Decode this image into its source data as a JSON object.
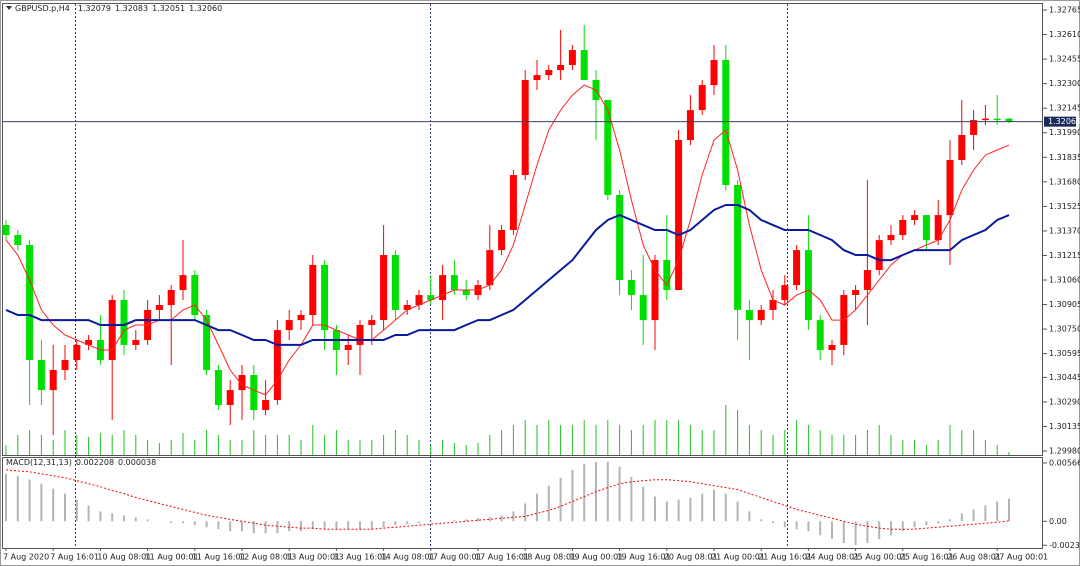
{
  "chart_data": {
    "type": "candlestick",
    "title": "GBPUSD.p,H4",
    "categories": [
      "7 Aug 2020",
      null,
      null,
      null,
      "7 Aug 16:01",
      null,
      null,
      null,
      "10 Aug 08:01",
      null,
      null,
      null,
      "11 Aug 00:01",
      null,
      null,
      null,
      "11 Aug 16:01",
      null,
      null,
      null,
      "12 Aug 08:01",
      null,
      null,
      null,
      "13 Aug 00:01",
      null,
      null,
      null,
      "13 Aug 16:01",
      null,
      null,
      null,
      "14 Aug 08:01",
      null,
      null,
      null,
      "17 Aug 00:01",
      null,
      null,
      null,
      "17 Aug 16:01",
      null,
      null,
      null,
      "18 Aug 08:01",
      null,
      null,
      null,
      "19 Aug 00:01",
      null,
      null,
      null,
      "19 Aug 16:01",
      null,
      null,
      null,
      "20 Aug 08:01",
      null,
      null,
      null,
      "21 Aug 00:01",
      null,
      null,
      null,
      "21 Aug 16:01",
      null,
      null,
      null,
      "24 Aug 08:01",
      null,
      null,
      null,
      "25 Aug 00:01",
      null,
      null,
      null,
      "25 Aug 16:01",
      null,
      null,
      null,
      "26 Aug 08:01",
      null,
      null,
      null,
      "27 Aug 00:01",
      null
    ],
    "open": [
      1.31407,
      1.31344,
      1.31281,
      1.30555,
      1.30365,
      1.30492,
      1.30555,
      1.3065,
      1.30681,
      1.30555,
      1.30934,
      1.3065,
      1.30681,
      1.30871,
      1.30902,
      1.30997,
      1.31091,
      1.30839,
      1.30492,
      1.30271,
      1.30365,
      1.3046,
      1.30239,
      1.30302,
      1.30744,
      1.30807,
      1.30839,
      1.31155,
      1.30744,
      1.30618,
      1.3065,
      1.30776,
      1.30807,
      1.31218,
      1.30871,
      1.30902,
      1.30965,
      1.30934,
      1.31091,
      1.30997,
      1.30965,
      1.31028,
      1.31249,
      1.31376,
      1.31723,
      1.32323,
      1.32354,
      1.32386,
      1.32418,
      1.32512,
      1.32323,
      1.32197,
      1.31597,
      1.3106,
      1.30965,
      1.30807,
      1.31186,
      1.30997,
      1.31944,
      1.32133,
      1.32291,
      1.32449,
      1.3166,
      1.30871,
      1.30807,
      1.30871,
      1.30934,
      1.31028,
      1.31249,
      1.30807,
      1.30618,
      1.3065,
      1.30965,
      1.30997,
      1.31123,
      1.31312,
      1.31344,
      1.31439,
      1.3147,
      1.31312,
      1.3147,
      1.31818,
      1.31976,
      1.3207,
      1.32079,
      1.32079
    ],
    "high": [
      1.31439,
      1.31376,
      1.31312,
      1.30681,
      1.3065,
      1.3065,
      1.30681,
      1.30713,
      1.30839,
      1.30965,
      1.30997,
      1.30744,
      1.30934,
      1.30965,
      1.31028,
      1.31312,
      1.31123,
      1.30871,
      1.30523,
      1.30428,
      1.30523,
      1.30523,
      1.30428,
      1.30807,
      1.30871,
      1.30871,
      1.31218,
      1.31186,
      1.30776,
      1.30713,
      1.30807,
      1.30839,
      1.31407,
      1.31249,
      1.30934,
      1.30997,
      1.31091,
      1.31155,
      1.31186,
      1.3106,
      1.3106,
      1.31407,
      1.31407,
      1.31755,
      1.32386,
      1.32449,
      1.32418,
      1.32639,
      1.32544,
      1.3267,
      1.32386,
      1.32197,
      1.31628,
      1.31123,
      1.31218,
      1.31218,
      1.3147,
      1.32007,
      1.32228,
      1.32323,
      1.32544,
      1.32544,
      1.31691,
      1.30934,
      1.30902,
      1.30997,
      1.31091,
      1.31281,
      1.3147,
      1.30839,
      1.30681,
      1.30997,
      1.31028,
      1.31691,
      1.31344,
      1.31407,
      1.3147,
      1.31502,
      1.3147,
      1.31565,
      1.31944,
      1.32197,
      1.32133,
      1.32165,
      1.32228,
      1.32083
    ],
    "low": [
      1.31312,
      1.31249,
      1.30271,
      1.30271,
      1.30081,
      1.30428,
      1.30492,
      1.30618,
      1.30523,
      1.30176,
      1.30586,
      1.30618,
      1.3065,
      1.30807,
      1.30523,
      1.30934,
      1.30807,
      1.3046,
      1.30239,
      1.30144,
      1.30176,
      1.30176,
      1.30207,
      1.30271,
      1.30681,
      1.30744,
      1.30776,
      1.30618,
      1.3046,
      1.30523,
      1.3046,
      1.3065,
      1.30744,
      1.30807,
      1.30839,
      1.30871,
      1.30902,
      1.30807,
      1.30965,
      1.30934,
      1.30934,
      1.30997,
      1.31218,
      1.31344,
      1.31691,
      1.3226,
      1.32323,
      1.32323,
      1.32386,
      1.32323,
      1.31944,
      1.31565,
      1.30965,
      1.30871,
      1.3065,
      1.30618,
      1.30934,
      1.30997,
      1.31912,
      1.32102,
      1.32228,
      1.31628,
      1.30681,
      1.30555,
      1.30776,
      1.30807,
      1.30902,
      1.30997,
      1.30744,
      1.30555,
      1.30523,
      1.30586,
      1.30871,
      1.30776,
      1.31091,
      1.31281,
      1.31312,
      1.31407,
      1.31249,
      1.31281,
      1.31155,
      1.31786,
      1.31881,
      1.32039,
      1.32039,
      1.32051
    ],
    "close": [
      1.31344,
      1.31281,
      1.30555,
      1.30365,
      1.30492,
      1.30555,
      1.3065,
      1.30681,
      1.30555,
      1.30934,
      1.3065,
      1.30681,
      1.30871,
      1.30902,
      1.30997,
      1.31091,
      1.30839,
      1.30492,
      1.30271,
      1.30365,
      1.3046,
      1.30239,
      1.30302,
      1.30744,
      1.30807,
      1.30839,
      1.31155,
      1.30744,
      1.30618,
      1.3065,
      1.30776,
      1.30807,
      1.31218,
      1.30871,
      1.30902,
      1.30965,
      1.30934,
      1.31091,
      1.30997,
      1.30965,
      1.31028,
      1.31249,
      1.31376,
      1.31723,
      1.32323,
      1.32354,
      1.32386,
      1.32418,
      1.32512,
      1.32323,
      1.32197,
      1.31597,
      1.3106,
      1.30965,
      1.30807,
      1.31186,
      1.30997,
      1.31944,
      1.32133,
      1.32291,
      1.32449,
      1.3166,
      1.30871,
      1.30807,
      1.30871,
      1.30934,
      1.31028,
      1.31249,
      1.30807,
      1.30618,
      1.3065,
      1.30965,
      1.30997,
      1.31123,
      1.31312,
      1.31344,
      1.31439,
      1.3147,
      1.31312,
      1.3147,
      1.31818,
      1.31976,
      1.3207,
      1.32079,
      1.3207,
      1.3206
    ],
    "volume": [
      10,
      20,
      25,
      20,
      15,
      25,
      20,
      18,
      22,
      20,
      25,
      20,
      15,
      12,
      15,
      22,
      15,
      25,
      20,
      15,
      15,
      25,
      20,
      20,
      20,
      15,
      30,
      20,
      25,
      15,
      15,
      15,
      20,
      25,
      20,
      15,
      10,
      15,
      12,
      10,
      12,
      20,
      25,
      30,
      35,
      30,
      35,
      30,
      30,
      35,
      30,
      35,
      30,
      25,
      30,
      35,
      35,
      35,
      30,
      25,
      25,
      50,
      45,
      30,
      25,
      20,
      25,
      35,
      30,
      25,
      20,
      20,
      20,
      25,
      30,
      20,
      15,
      15,
      10,
      15,
      30,
      25,
      25,
      15,
      10,
      3
    ],
    "volume_lim": [
      0,
      450
    ],
    "volume_color": "#22c022",
    "up_color": "#ff0000",
    "down_color": "#00e000",
    "ylim": [
      1.29955,
      1.32803
    ],
    "yticks": [
      1.32765,
      {
        "value": 1.3261,
        "label": "1.32610"
      },
      1.32455,
      {
        "value": 1.323,
        "label": "1.32300"
      },
      1.32145,
      {
        "value": 1.3199,
        "label": "1.31990"
      },
      1.31835,
      {
        "value": 1.3168,
        "label": "1.31680"
      },
      1.31525,
      {
        "value": 1.3137,
        "label": "1.31370"
      },
      1.31215,
      {
        "value": 1.3106,
        "label": "1.31060"
      },
      1.30905,
      {
        "value": 1.3075,
        "label": "1.30750"
      },
      1.30595,
      1.30445,
      {
        "value": 1.3029,
        "label": "1.30290"
      },
      1.30135,
      {
        "value": 1.2998,
        "label": "1.29980"
      }
    ],
    "last_price": {
      "value": 1.3206,
      "label": "1.32060"
    },
    "grid": false,
    "overlays": [
      {
        "color": "#ff2020",
        "values": [
          1.31312,
          1.31218,
          1.3106,
          1.30871,
          1.30776,
          1.30713,
          1.30681,
          1.3065,
          1.30618,
          1.30618,
          1.30744,
          1.30776,
          1.30776,
          1.30807,
          1.30807,
          1.30871,
          1.30902,
          1.30807,
          1.3065,
          1.30492,
          1.30397,
          1.30365,
          1.30334,
          1.30428,
          1.30555,
          1.3065,
          1.30776,
          1.30776,
          1.30744,
          1.30713,
          1.30681,
          1.30681,
          1.30744,
          1.30807,
          1.30871,
          1.30902,
          1.30934,
          1.30965,
          1.30997,
          1.30997,
          1.30997,
          1.31028,
          1.31123,
          1.31281,
          1.31534,
          1.31786,
          1.32007,
          1.32133,
          1.32228,
          1.32291,
          1.3226,
          1.32133,
          1.31881,
          1.31565,
          1.31281,
          1.31123,
          1.31028,
          1.31186,
          1.31439,
          1.31723,
          1.31944,
          1.32007,
          1.31755,
          1.31407,
          1.31123,
          1.30934,
          1.30902,
          1.30965,
          1.30997,
          1.30934,
          1.30807,
          1.30807,
          1.30871,
          1.30965,
          1.3106,
          1.31155,
          1.31218,
          1.31249,
          1.31281,
          1.31312,
          1.31439,
          1.31628,
          1.31755,
          1.31849,
          1.31881,
          1.31912
        ],
        "width": 1
      },
      {
        "color": "#0a1aa0",
        "values": [
          1.30871,
          1.30839,
          1.30839,
          1.30807,
          1.30807,
          1.30807,
          1.30807,
          1.30807,
          1.30776,
          1.30776,
          1.30776,
          1.30807,
          1.30807,
          1.30807,
          1.30807,
          1.30807,
          1.30807,
          1.30776,
          1.30744,
          1.30744,
          1.30713,
          1.30681,
          1.30681,
          1.3065,
          1.3065,
          1.3065,
          1.30681,
          1.30681,
          1.30681,
          1.30681,
          1.30681,
          1.30681,
          1.30681,
          1.30713,
          1.30713,
          1.30744,
          1.30744,
          1.30744,
          1.30744,
          1.30776,
          1.30807,
          1.30807,
          1.30839,
          1.30871,
          1.30934,
          1.30997,
          1.3106,
          1.31123,
          1.31186,
          1.31281,
          1.31376,
          1.31439,
          1.3147,
          1.31439,
          1.31407,
          1.31376,
          1.31376,
          1.31344,
          1.31376,
          1.31439,
          1.31502,
          1.31534,
          1.31534,
          1.31502,
          1.31439,
          1.31407,
          1.31376,
          1.31376,
          1.31376,
          1.31344,
          1.31312,
          1.31249,
          1.31218,
          1.31218,
          1.31186,
          1.31186,
          1.31218,
          1.31249,
          1.31249,
          1.31249,
          1.31249,
          1.31312,
          1.31344,
          1.31376,
          1.31439,
          1.3147
        ],
        "width": 2
      }
    ],
    "macd": {
      "title": "MACD(12,31,13)",
      "histogram": [
        0.00461,
        0.00442,
        0.00404,
        0.00365,
        0.00317,
        0.00269,
        0.00211,
        0.00154,
        0.00096,
        0.00077,
        0.00058,
        0.00038,
        0.00019,
        0,
        -0.00019,
        -0.00019,
        -0.00038,
        -0.00058,
        -0.00077,
        -0.00096,
        -0.00096,
        -0.00115,
        -0.00115,
        -0.00115,
        -0.00096,
        -0.00096,
        -0.00077,
        -0.00077,
        -0.00077,
        -0.00077,
        -0.00077,
        -0.00077,
        -0.00058,
        -0.00038,
        -0.00029,
        -0.00019,
        -0.0001,
        0,
        0.0001,
        0.00019,
        0.00029,
        0.00038,
        0.00058,
        0.00096,
        0.00173,
        0.00269,
        0.00346,
        0.00423,
        0.005,
        0.00557,
        0.00577,
        0.00577,
        0.00529,
        0.00432,
        0.00336,
        0.0024,
        0.00192,
        0.00211,
        0.00231,
        0.00269,
        0.00308,
        0.00269,
        0.00192,
        0.00096,
        0.00019,
        -0.00019,
        -0.00058,
        -0.00077,
        -0.00096,
        -0.00135,
        -0.00173,
        -0.00211,
        -0.00231,
        -0.00211,
        -0.00173,
        -0.00135,
        -0.00096,
        -0.00058,
        -0.00038,
        -0.00019,
        0.00019,
        0.00077,
        0.00115,
        0.00154,
        0.00192,
        0.002208
      ],
      "signal": [
        0.005,
        0.0049,
        0.00481,
        0.00461,
        0.00442,
        0.00423,
        0.00394,
        0.00365,
        0.00336,
        0.00298,
        0.00269,
        0.00231,
        0.00202,
        0.00173,
        0.00144,
        0.00115,
        0.00086,
        0.00058,
        0.00038,
        0.00019,
        0,
        -0.00019,
        -0.00038,
        -0.00048,
        -0.00058,
        -0.00067,
        -0.00067,
        -0.00077,
        -0.00077,
        -0.00077,
        -0.00077,
        -0.00077,
        -0.00067,
        -0.00058,
        -0.00048,
        -0.00038,
        -0.00029,
        -0.00019,
        -0.0001,
        0,
        0.0001,
        0.00019,
        0.00029,
        0.00038,
        0.00048,
        0.00077,
        0.00106,
        0.00144,
        0.00192,
        0.0024,
        0.00288,
        0.00327,
        0.00365,
        0.00384,
        0.00394,
        0.00404,
        0.00404,
        0.00394,
        0.00384,
        0.00365,
        0.00346,
        0.00327,
        0.00308,
        0.00269,
        0.00231,
        0.00192,
        0.00154,
        0.00115,
        0.00086,
        0.00058,
        0.00029,
        0,
        -0.00029,
        -0.00048,
        -0.00067,
        -0.00077,
        -0.00077,
        -0.00077,
        -0.00067,
        -0.00058,
        -0.00048,
        -0.00038,
        -0.00029,
        -0.00019,
        -0.0001,
        3.8e-05
      ],
      "histogram_color": "#b4b4b4",
      "signal_color": "#ff0000",
      "ylim": [
        -0.0026,
        0.00615
      ],
      "yticks": [
        0.005668,
        {
          "value": 0,
          "label": "0.00"
        },
        -0.002333
      ]
    }
  }
}
